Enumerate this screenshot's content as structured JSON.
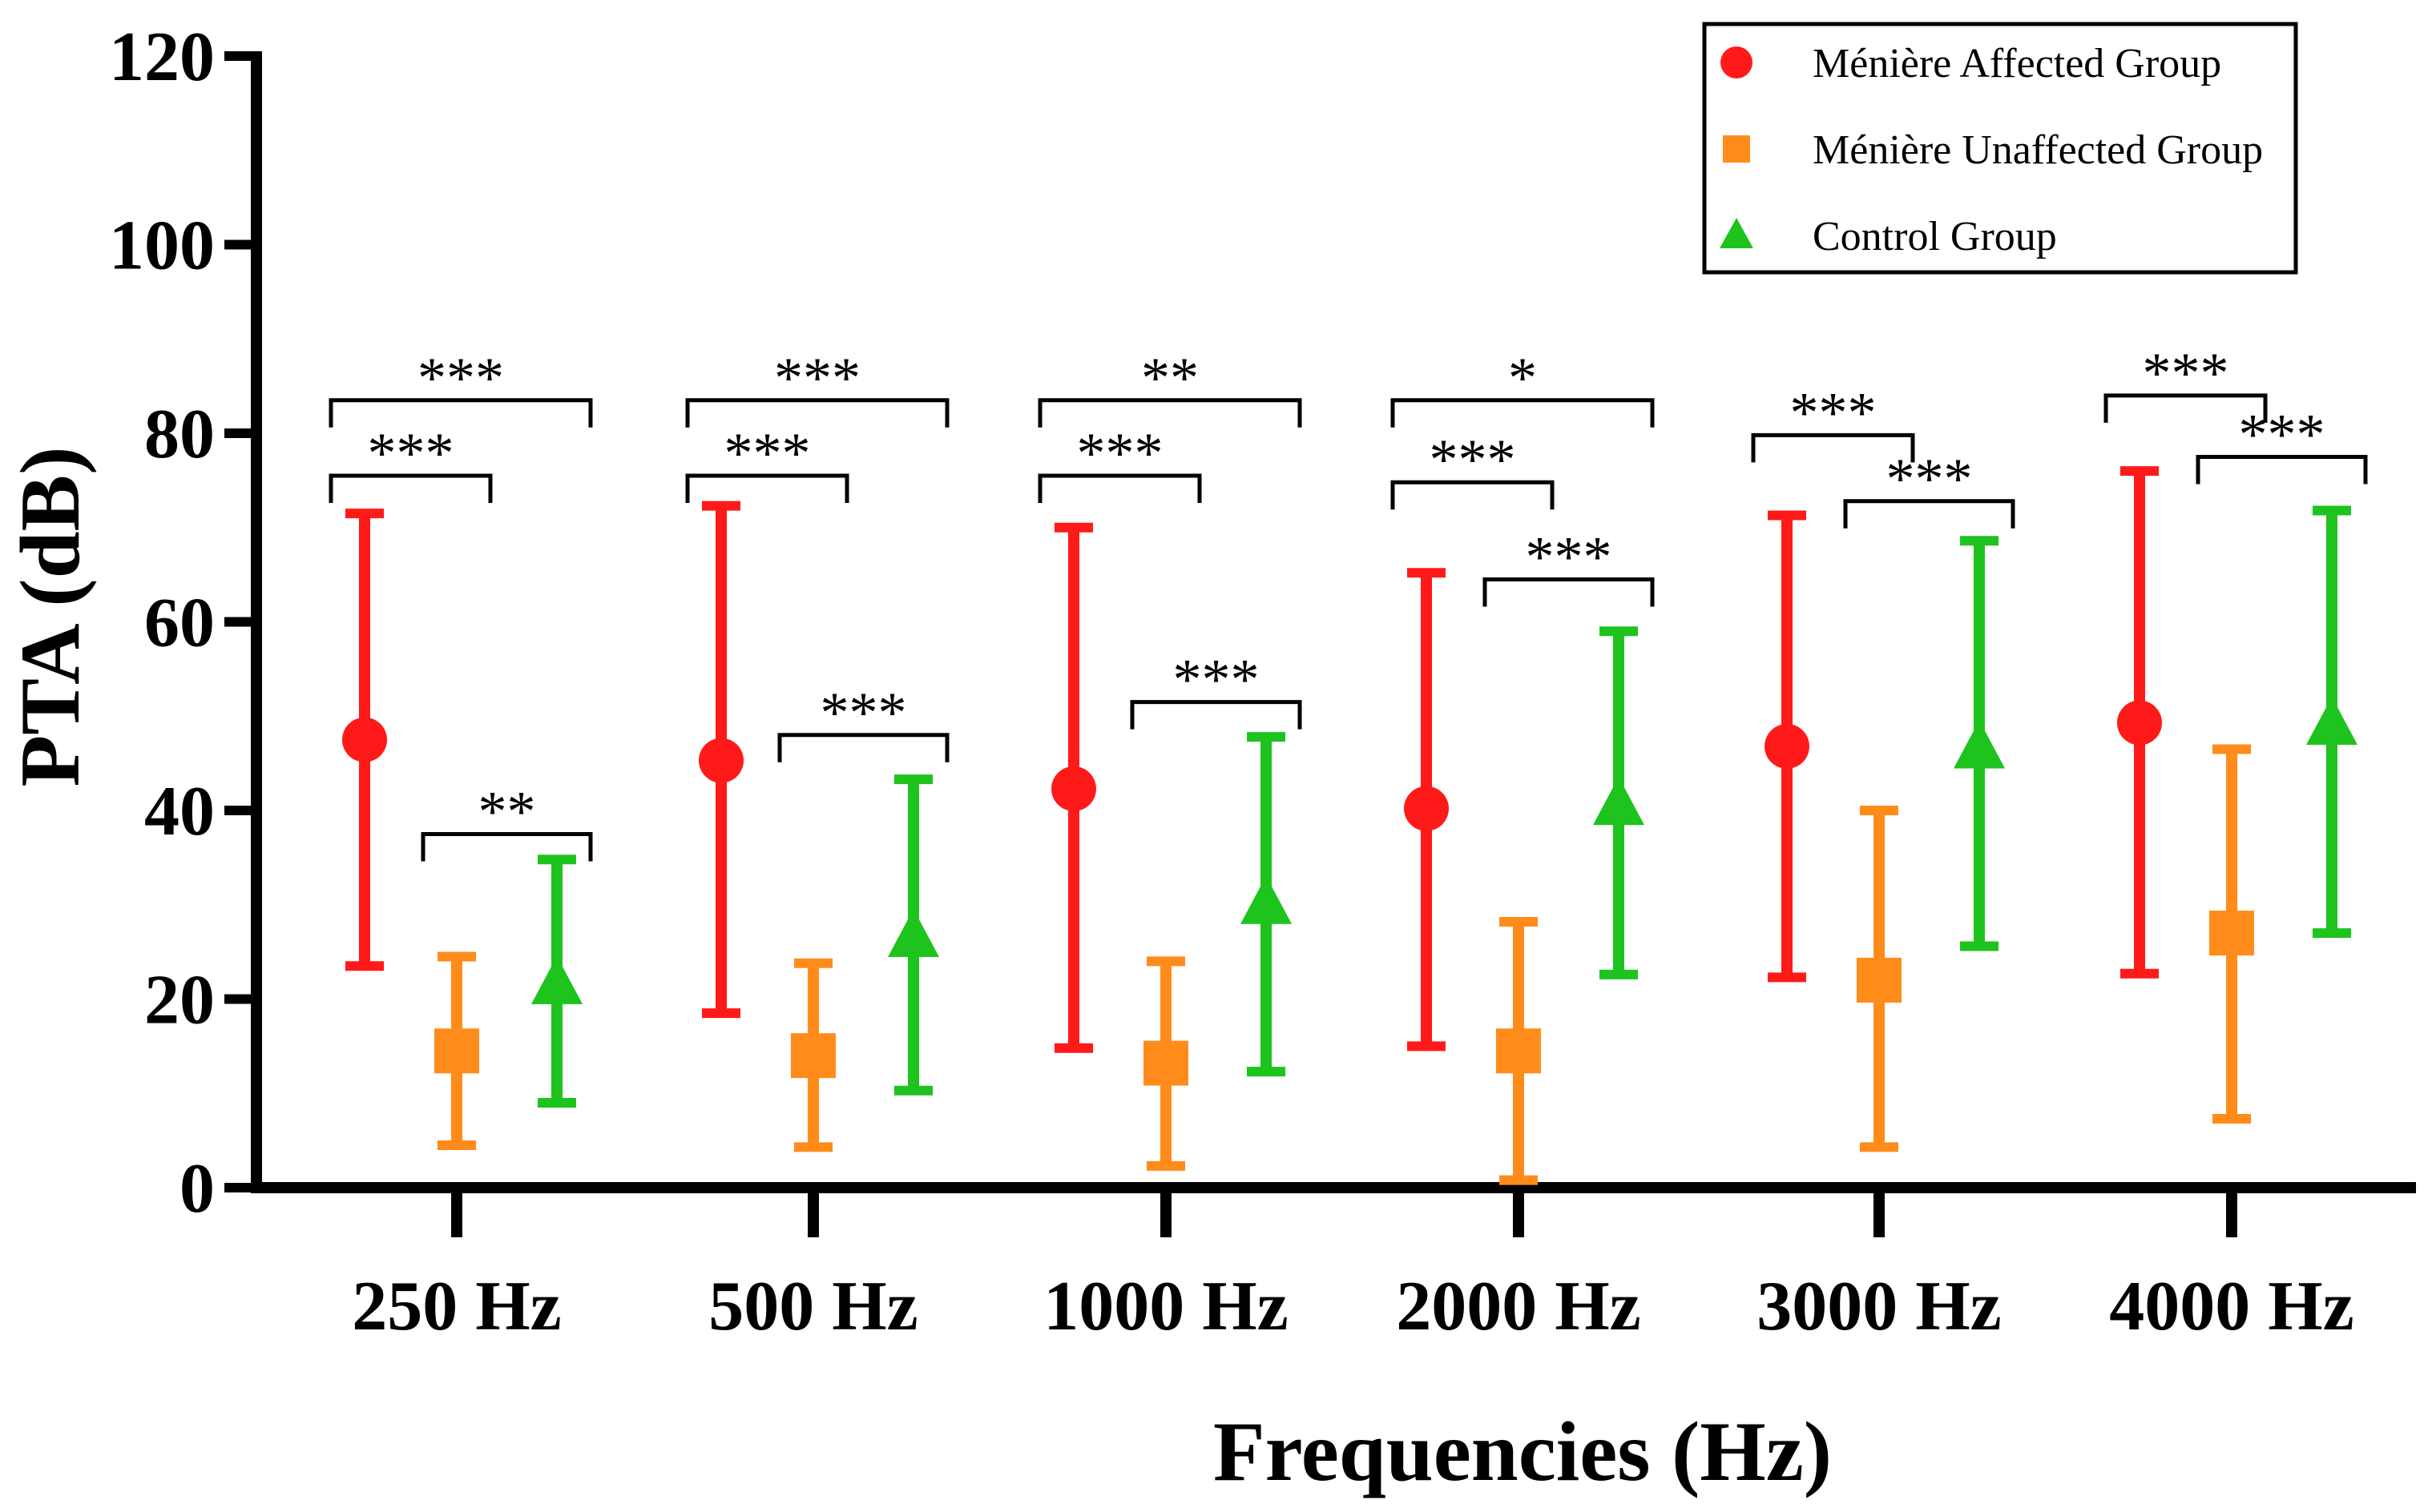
{
  "chart_data": {
    "type": "scatter",
    "subtype": "mean-with-error-bars",
    "xlabel": "Frequencies (Hz)",
    "ylabel": "PTA (dB)",
    "ylim": [
      0,
      120
    ],
    "yticks": [
      0,
      20,
      40,
      60,
      80,
      100,
      120
    ],
    "grid": false,
    "legend_position": "top-right",
    "categories": [
      "250 Hz",
      "500 Hz",
      "1000 Hz",
      "2000 Hz",
      "3000 Hz",
      "4000 Hz"
    ],
    "series": [
      {
        "name": "Ménière Affected Group",
        "marker": "circle",
        "color": "#ff1a1a",
        "mean": [
          47.5,
          45.3,
          42.3,
          40.2,
          46.8,
          49.3
        ],
        "upper": [
          71.5,
          72.3,
          70.0,
          65.2,
          71.3,
          76.0
        ],
        "lower": [
          23.5,
          18.5,
          14.8,
          15.0,
          22.3,
          22.7
        ]
      },
      {
        "name": "Ménière Unaffected Group",
        "marker": "square",
        "color": "#ff8c1a",
        "mean": [
          14.5,
          14.0,
          13.2,
          14.5,
          22.0,
          27.0
        ],
        "upper": [
          24.5,
          23.8,
          24.0,
          28.2,
          40.0,
          46.5
        ],
        "lower": [
          4.5,
          4.3,
          2.3,
          0.8,
          4.3,
          7.3
        ]
      },
      {
        "name": "Control Group",
        "marker": "triangle",
        "color": "#1ec31e",
        "mean": [
          21.5,
          26.5,
          30.0,
          40.5,
          46.5,
          49.0
        ],
        "upper": [
          34.8,
          43.3,
          47.8,
          59.0,
          68.6,
          71.8
        ],
        "lower": [
          9.0,
          10.3,
          12.3,
          22.6,
          25.6,
          27.0
        ]
      }
    ],
    "significance": [
      {
        "category": "250 Hz",
        "from": "Ménière Affected Group",
        "to": "Control Group",
        "y": 83.5,
        "label": "***"
      },
      {
        "category": "250 Hz",
        "from": "Ménière Affected Group",
        "to": "Ménière Unaffected Group",
        "y": 75.5,
        "label": "***"
      },
      {
        "category": "250 Hz",
        "from": "Ménière Unaffected Group",
        "to": "Control Group",
        "y": 37.5,
        "label": "**"
      },
      {
        "category": "500 Hz",
        "from": "Ménière Affected Group",
        "to": "Control Group",
        "y": 83.5,
        "label": "***"
      },
      {
        "category": "500 Hz",
        "from": "Ménière Affected Group",
        "to": "Ménière Unaffected Group",
        "y": 75.5,
        "label": "***"
      },
      {
        "category": "500 Hz",
        "from": "Ménière Unaffected Group",
        "to": "Control Group",
        "y": 48.0,
        "label": "***"
      },
      {
        "category": "1000 Hz",
        "from": "Ménière Affected Group",
        "to": "Control Group",
        "y": 83.5,
        "label": "**"
      },
      {
        "category": "1000 Hz",
        "from": "Ménière Affected Group",
        "to": "Ménière Unaffected Group",
        "y": 75.5,
        "label": "***"
      },
      {
        "category": "1000 Hz",
        "from": "Ménière Unaffected Group",
        "to": "Control Group",
        "y": 51.5,
        "label": "***"
      },
      {
        "category": "2000 Hz",
        "from": "Ménière Affected Group",
        "to": "Control Group",
        "y": 83.5,
        "label": "*"
      },
      {
        "category": "2000 Hz",
        "from": "Ménière Affected Group",
        "to": "Ménière Unaffected Group",
        "y": 74.8,
        "label": "***"
      },
      {
        "category": "2000 Hz",
        "from": "Ménière Unaffected Group",
        "to": "Control Group",
        "y": 64.5,
        "label": "***"
      },
      {
        "category": "3000 Hz",
        "from": "Ménière Affected Group",
        "to": "Ménière Unaffected Group",
        "y": 79.8,
        "label": "***"
      },
      {
        "category": "3000 Hz",
        "from": "Ménière Unaffected Group",
        "to": "Control Group",
        "y": 72.8,
        "label": "***"
      },
      {
        "category": "4000 Hz",
        "from": "Ménière Affected Group",
        "to": "Ménière Unaffected Group",
        "y": 84.0,
        "label": "***"
      },
      {
        "category": "4000 Hz",
        "from": "Ménière Unaffected Group",
        "to": "Control Group",
        "y": 77.5,
        "label": "***"
      }
    ]
  }
}
